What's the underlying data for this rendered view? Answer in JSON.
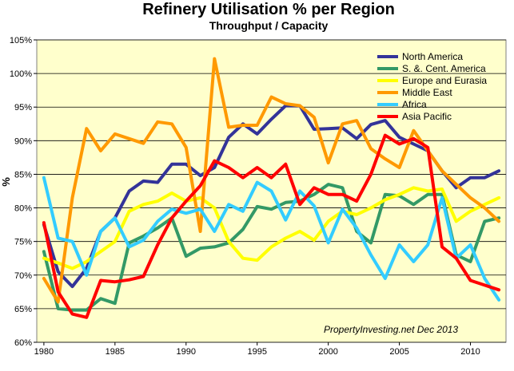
{
  "chart_data": {
    "type": "line",
    "title": "Refinery  Utilisation  % per Region",
    "subtitle": "Throughput / Capacity",
    "xlabel": "",
    "ylabel": "%",
    "xlim": [
      1979.5,
      2012.5
    ],
    "ylim": [
      60,
      105
    ],
    "x_ticks": [
      1980,
      1985,
      1990,
      1995,
      2000,
      2005,
      2010
    ],
    "x_tick_labels": [
      "1980",
      "1985",
      "1990",
      "1995",
      "2000",
      "2005",
      "2010"
    ],
    "y_ticks": [
      60,
      65,
      70,
      75,
      80,
      85,
      90,
      95,
      100,
      105
    ],
    "y_tick_labels": [
      "60%",
      "65%",
      "70%",
      "75%",
      "80%",
      "85%",
      "90%",
      "95%",
      "100%",
      "105%"
    ],
    "grid": "horizontal",
    "legend_position": "top-right",
    "annotation": "PropertyInvesting.net  Dec 2013",
    "plot_background": "#ffffcc",
    "x": [
      1980,
      1981,
      1982,
      1983,
      1984,
      1985,
      1986,
      1987,
      1988,
      1989,
      1990,
      1991,
      1992,
      1993,
      1994,
      1995,
      1996,
      1997,
      1998,
      1999,
      2000,
      2001,
      2002,
      2003,
      2004,
      2005,
      2006,
      2007,
      2008,
      2009,
      2010,
      2011,
      2012
    ],
    "series": [
      {
        "name": "North America",
        "color": "#333399",
        "values": [
          77.5,
          70.5,
          68.3,
          71,
          76.5,
          78.5,
          82.5,
          84,
          83.8,
          86.5,
          86.5,
          84.8,
          86,
          90.5,
          92.5,
          91,
          93.2,
          95.2,
          95.2,
          91.7,
          91.8,
          91.9,
          90.3,
          92.4,
          93,
          90.5,
          89.5,
          88.5,
          85.5,
          83,
          84.5,
          84.5,
          85.5
        ]
      },
      {
        "name": "S. &. Cent. America",
        "color": "#339966",
        "values": [
          73.5,
          65,
          64.8,
          64.8,
          66.5,
          65.8,
          74.8,
          75.8,
          77,
          78.5,
          72.8,
          74,
          74.2,
          74.8,
          76.8,
          80.2,
          79.8,
          80.8,
          81,
          82,
          83.5,
          83,
          76.5,
          74.8,
          82,
          81.8,
          80.5,
          82,
          82,
          73,
          72,
          78,
          78.5
        ]
      },
      {
        "name": "Europe and Eurasia",
        "color": "#ffff00",
        "values": [
          72.5,
          71.8,
          71,
          72,
          73.5,
          75,
          79.5,
          80.5,
          81,
          82.2,
          81,
          81.5,
          80,
          75,
          72.5,
          72.2,
          74.2,
          75.5,
          76.5,
          75.2,
          78,
          79.5,
          79,
          80,
          81.2,
          82,
          83,
          82.5,
          82.8,
          78,
          79.5,
          80.5,
          81.5
        ]
      },
      {
        "name": "Middle East",
        "color": "#ff9900",
        "values": [
          69.5,
          66,
          81.5,
          91.8,
          88.5,
          91,
          90.3,
          89.6,
          92.8,
          92.5,
          89,
          76.5,
          102.2,
          92,
          92.3,
          92.3,
          96.5,
          95.5,
          95.2,
          93.5,
          86.7,
          92.5,
          93,
          88.8,
          87.3,
          86,
          91.5,
          88.5,
          85.5,
          83.5,
          81.5,
          80,
          78
        ]
      },
      {
        "name": "Africa",
        "color": "#33ccff",
        "values": [
          84.5,
          75.5,
          75,
          70,
          76.5,
          78.5,
          74.2,
          75.2,
          78,
          79.8,
          79.2,
          79.8,
          76.5,
          80.5,
          79.5,
          83.8,
          82.5,
          78.2,
          82.5,
          80.3,
          74.8,
          79.8,
          77,
          73,
          69.5,
          74.5,
          72,
          74.5,
          81.5,
          72.5,
          74.5,
          69.5,
          66.3
        ]
      },
      {
        "name": "Asia Pacific",
        "color": "#ff0000",
        "values": [
          77.8,
          67.5,
          64.2,
          63.7,
          69.2,
          69,
          69.3,
          69.8,
          74.5,
          78.5,
          81,
          83.3,
          87,
          86,
          84.5,
          86,
          84.5,
          86.5,
          80.5,
          83,
          82,
          82,
          81,
          85,
          90.8,
          89.5,
          90.3,
          89,
          74.2,
          72.5,
          69.2,
          68.5,
          67.8
        ]
      }
    ]
  }
}
